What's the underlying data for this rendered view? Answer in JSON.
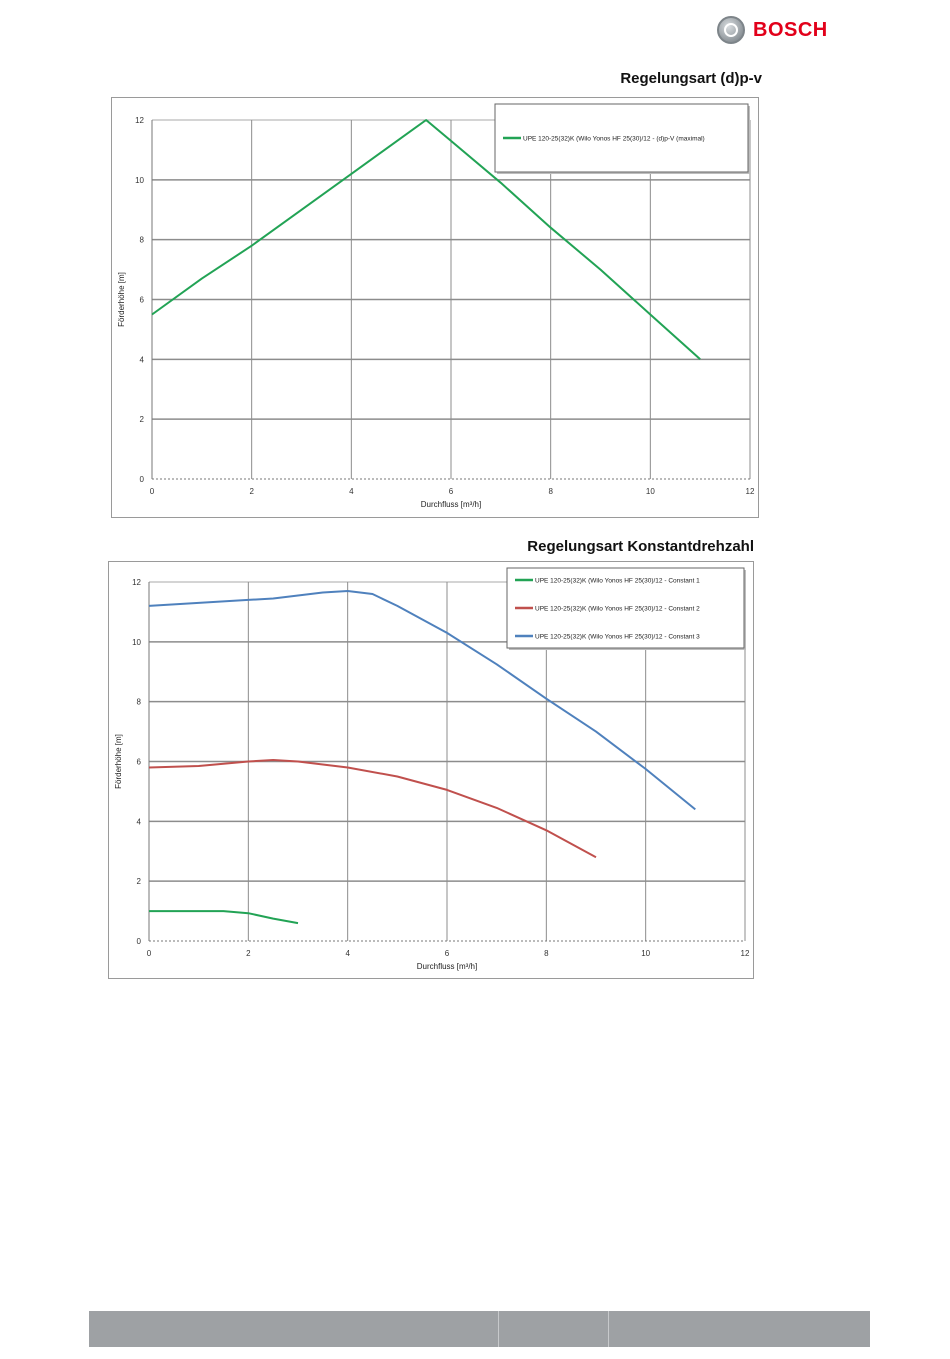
{
  "brand": {
    "name": "BOSCH",
    "logo_icon": "bosch-armature-icon",
    "color": "#e2001a"
  },
  "chart_data": [
    {
      "type": "line",
      "title": "Regelungsart (d)p-v",
      "xlabel": "Durchfluss [m³/h]",
      "ylabel": "Förderhöhe [m]",
      "xlim": [
        0,
        12
      ],
      "ylim": [
        0,
        12
      ],
      "xticks": [
        0,
        2,
        4,
        6,
        8,
        10,
        12
      ],
      "yticks": [
        0,
        2,
        4,
        6,
        8,
        10,
        12
      ],
      "grid": true,
      "legend_position": "top-right",
      "series": [
        {
          "name": "UPE 120-25(32)K (Wilo Yonos HF 25(30)/12 - (d)p-V (maximal)",
          "color": "#22a355",
          "x": [
            0,
            1,
            2,
            3,
            4,
            5,
            5.5,
            6,
            7,
            8,
            9,
            10,
            11
          ],
          "y": [
            5.5,
            6.7,
            7.8,
            9.0,
            10.2,
            11.4,
            12.0,
            11.3,
            9.9,
            8.4,
            7.0,
            5.5,
            4.0
          ]
        }
      ]
    },
    {
      "type": "line",
      "title": "Regelungsart Konstantdrehzahl",
      "xlabel": "Durchfluss [m³/h]",
      "ylabel": "Förderhöhe [m]",
      "xlim": [
        0,
        12
      ],
      "ylim": [
        0,
        12
      ],
      "xticks": [
        0,
        2,
        4,
        6,
        8,
        10,
        12
      ],
      "yticks": [
        0,
        2,
        4,
        6,
        8,
        10,
        12
      ],
      "grid": true,
      "legend_position": "top-right",
      "series": [
        {
          "name": "UPE 120-25(32)K (Wilo Yonos HF 25(30)/12 - Constant 1",
          "color": "#22a355",
          "x": [
            0,
            0.5,
            1.0,
            1.5,
            2.0,
            2.5,
            3.0
          ],
          "y": [
            1.0,
            1.0,
            1.0,
            1.0,
            0.93,
            0.75,
            0.6
          ]
        },
        {
          "name": "UPE 120-25(32)K (Wilo Yonos HF 25(30)/12 - Constant 2",
          "color": "#c0504d",
          "x": [
            0,
            1,
            2,
            2.5,
            3,
            4,
            5,
            6,
            7,
            8,
            9
          ],
          "y": [
            5.8,
            5.85,
            6.0,
            6.05,
            6.0,
            5.8,
            5.5,
            5.05,
            4.45,
            3.7,
            2.8
          ]
        },
        {
          "name": "UPE 120-25(32)K (Wilo Yonos HF 25(30)/12 - Constant 3",
          "color": "#4f81bd",
          "x": [
            0,
            1,
            2,
            2.5,
            3,
            3.5,
            4,
            4.5,
            5,
            6,
            7,
            8,
            9,
            10,
            11
          ],
          "y": [
            11.2,
            11.3,
            11.4,
            11.45,
            11.55,
            11.65,
            11.7,
            11.6,
            11.2,
            10.3,
            9.25,
            8.1,
            7.0,
            5.75,
            4.4
          ]
        }
      ]
    }
  ],
  "footer": {
    "color": "#9ea1a4"
  }
}
